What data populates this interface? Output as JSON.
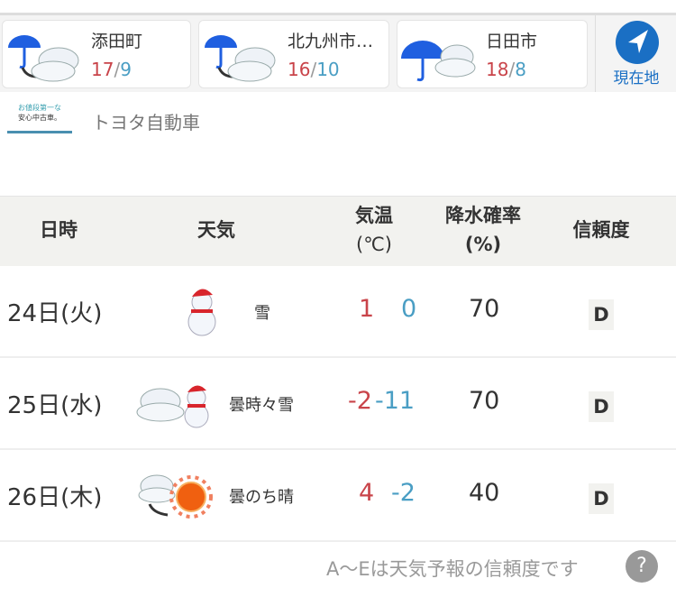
{
  "cities": [
    {
      "name": "添田町",
      "high": "17",
      "low": "9",
      "icon": "rain-then-cloudy-icon"
    },
    {
      "name": "北九州市…",
      "high": "16",
      "low": "10",
      "icon": "rain-then-cloudy-icon"
    },
    {
      "name": "日田市",
      "high": "18",
      "low": "8",
      "icon": "rain-cloudy-icon"
    }
  ],
  "location_button": "現在地",
  "ad": {
    "logo_line1": "お値段第一な",
    "logo_line2": "安心中古車。",
    "company": "トヨタ自動車"
  },
  "table": {
    "headers": {
      "date": "日時",
      "weather": "天気",
      "temp1": "気温",
      "temp2": "(℃)",
      "pop1": "降水確率",
      "pop2": "(%)",
      "reliability": "信頼度"
    },
    "rows": [
      {
        "date": "24日(火)",
        "weather": "雪",
        "high": "1",
        "low": "0",
        "pop": "70",
        "reliability": "D",
        "icon": "snow-icon"
      },
      {
        "date": "25日(水)",
        "weather": "曇時々雪",
        "high": "-2",
        "low": "-11",
        "pop": "70",
        "reliability": "D",
        "icon": "cloudy-sometimes-snow-icon"
      },
      {
        "date": "26日(木)",
        "weather": "曇のち晴",
        "high": "4",
        "low": "-2",
        "pop": "40",
        "reliability": "D",
        "icon": "cloudy-then-sunny-icon"
      }
    ]
  },
  "footer": {
    "note": "A〜Eは天気予報の信頼度です",
    "help": "?"
  },
  "colors": {
    "high": "#c9444a",
    "low": "#4a9ec4",
    "accent": "#1a6fc4"
  }
}
